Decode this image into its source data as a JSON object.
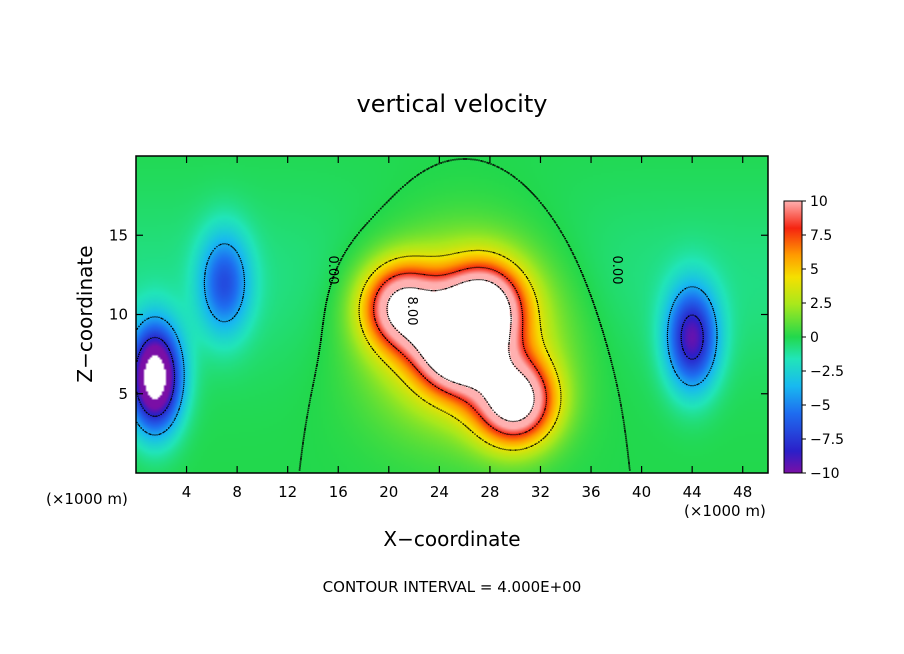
{
  "chart_data": {
    "type": "heatmap",
    "title": "vertical velocity",
    "xlabel": "X−coordinate",
    "ylabel": "Z−coordinate",
    "x_unit_note": "(×1000 m)",
    "z_unit_note": "(×1000 m)",
    "footer": "CONTOUR INTERVAL = 4.000E+00",
    "xlim": [
      0,
      50
    ],
    "ylim": [
      0,
      20
    ],
    "x_ticks": [
      4,
      8,
      12,
      16,
      20,
      24,
      28,
      32,
      36,
      40,
      44,
      48
    ],
    "x_tick_labels": [
      "4",
      "8",
      "12",
      "16",
      "20",
      "24",
      "28",
      "32",
      "36",
      "40",
      "44",
      "48"
    ],
    "y_ticks": [
      5,
      10,
      15
    ],
    "y_tick_labels": [
      "5",
      "10",
      "15"
    ],
    "colorbar": {
      "range": [
        -10,
        10
      ],
      "tick_values": [
        10,
        7.5,
        5,
        2.5,
        0,
        -2.5,
        -5,
        -7.5,
        -10
      ],
      "tick_labels": [
        "10",
        "7.5",
        "5",
        "2.5",
        "0",
        "−2.5",
        "−5",
        "−7.5",
        "−10"
      ]
    },
    "contour_labels": [
      "0.00",
      "8.00",
      "0.00"
    ],
    "contour_interval": 4.0,
    "features": [
      {
        "kind": "updraft",
        "x": 25.5,
        "z": 8.0,
        "peak": 14
      },
      {
        "kind": "updraft",
        "x": 21.0,
        "z": 10.5,
        "peak": 11
      },
      {
        "kind": "updraft",
        "x": 27.5,
        "z": 10.5,
        "peak": 11
      },
      {
        "kind": "updraft",
        "x": 30.0,
        "z": 4.5,
        "peak": 13
      },
      {
        "kind": "downdraft",
        "x": 1.5,
        "z": 6.0,
        "peak": -14
      },
      {
        "kind": "downdraft",
        "x": 44.0,
        "z": 8.5,
        "peak": -9
      },
      {
        "kind": "downdraft",
        "x": 7.0,
        "z": 12.0,
        "peak": -6
      }
    ]
  }
}
